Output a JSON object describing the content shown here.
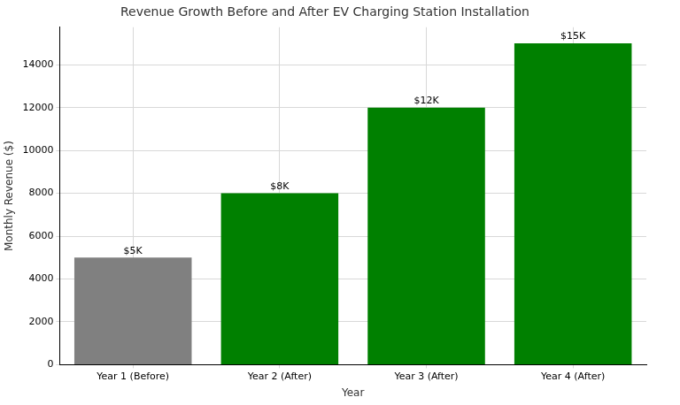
{
  "chart_data": {
    "type": "bar",
    "title": "Revenue Growth Before and After EV Charging Station Installation",
    "xlabel": "Year",
    "ylabel": "Monthly Revenue ($)",
    "categories": [
      "Year 1 (Before)",
      "Year 2 (After)",
      "Year 3 (After)",
      "Year 4 (After)"
    ],
    "values": [
      5000,
      8000,
      12000,
      15000
    ],
    "value_labels": [
      "$5K",
      "$8K",
      "$12K",
      "$15K"
    ],
    "data_labels": true,
    "colors": [
      "#808080",
      "#008000",
      "#008000",
      "#008000"
    ],
    "ylim": [
      0,
      15750
    ],
    "yticks": [
      0,
      2000,
      4000,
      6000,
      8000,
      10000,
      12000,
      14000
    ],
    "grid": true
  }
}
